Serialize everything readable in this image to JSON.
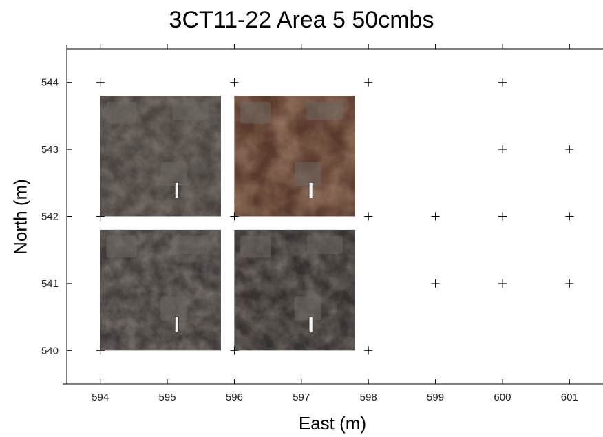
{
  "chart_data": {
    "type": "scatter",
    "title": "3CT11-22 Area 5 50cmbs",
    "xlabel": "East (m)",
    "ylabel": "North (m)",
    "xlim": [
      593.5,
      601.5
    ],
    "ylim": [
      539.5,
      544.5
    ],
    "xticks": [
      594,
      595,
      596,
      597,
      598,
      599,
      600,
      601
    ],
    "yticks": [
      540,
      541,
      542,
      543,
      544
    ],
    "grid": false,
    "series": [
      {
        "marker": "plus",
        "points": [
          {
            "x": 594,
            "y": 544
          },
          {
            "x": 596,
            "y": 544
          },
          {
            "x": 598,
            "y": 544
          },
          {
            "x": 600,
            "y": 544
          },
          {
            "x": 600,
            "y": 543
          },
          {
            "x": 601,
            "y": 543
          },
          {
            "x": 594,
            "y": 542
          },
          {
            "x": 596,
            "y": 542
          },
          {
            "x": 598,
            "y": 542
          },
          {
            "x": 599,
            "y": 542
          },
          {
            "x": 600,
            "y": 542
          },
          {
            "x": 601,
            "y": 542
          },
          {
            "x": 599,
            "y": 541
          },
          {
            "x": 600,
            "y": 541
          },
          {
            "x": 601,
            "y": 541
          },
          {
            "x": 594,
            "y": 540
          },
          {
            "x": 596,
            "y": 540
          },
          {
            "x": 598,
            "y": 540
          }
        ]
      }
    ],
    "unit_photos": [
      {
        "x0": 594,
        "x1": 595.8,
        "y0": 542,
        "y1": 543.8
      },
      {
        "x0": 596,
        "x1": 597.8,
        "y0": 542,
        "y1": 543.8
      },
      {
        "x0": 594,
        "x1": 595.8,
        "y0": 540,
        "y1": 541.8
      },
      {
        "x0": 596,
        "x1": 597.8,
        "y0": 540,
        "y1": 541.8
      }
    ]
  }
}
